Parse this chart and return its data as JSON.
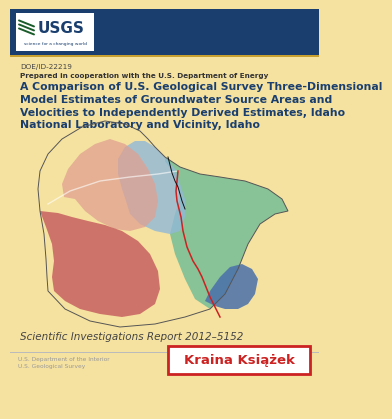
{
  "bg_color": "#f5e2a0",
  "header_bg": "#1a3f6f",
  "doc_id": "DOE/ID-22219",
  "cooperation_text": "Prepared in cooperation with the U.S. Department of Energy",
  "title": "A Comparison of U.S. Geological Survey Three-Dimensional\nModel Estimates of Groundwater Source Areas and\nVelocities to Independently Derived Estimates, Idaho\nNational Laboratory and Vicinity, Idaho",
  "sir_text": "Scientific Investigations Report 2012–5152",
  "footer_text1": "U.S. Department of the Interior",
  "footer_text2": "U.S. Geological Survey",
  "title_color": "#1a3f6f",
  "doc_id_color": "#444444",
  "coop_color": "#333333",
  "sir_color": "#444444",
  "footer_color": "#999999",
  "watermark_text": "Kraina Książek",
  "watermark_color": "#cc2222",
  "map_green": "#7cbf96",
  "map_red": "#c86060",
  "map_salmon": "#e0a090",
  "map_blue": "#90b8d8",
  "map_darkblue": "#4a6faa",
  "map_outline": "#555555"
}
